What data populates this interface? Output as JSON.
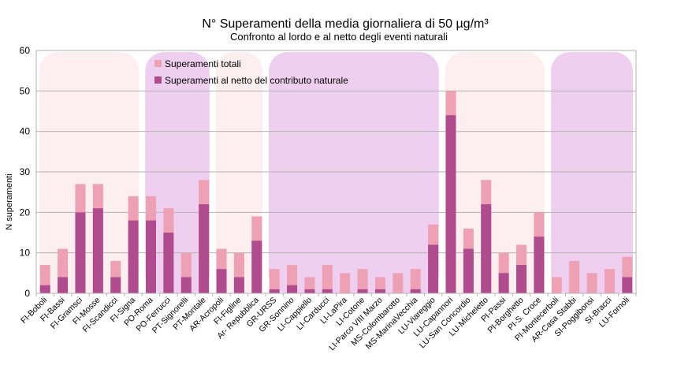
{
  "chart_data": {
    "type": "bar",
    "title": "N° Superamenti della media giornaliera di 50 µg/m³",
    "subtitle": "Confronto al lordo e al netto degli eventi naturali",
    "xlabel": "",
    "ylabel": "N superamenti",
    "ylim": [
      0,
      60
    ],
    "yticks": [
      0,
      10,
      20,
      30,
      40,
      50,
      60
    ],
    "grid": true,
    "legend_position": "top-left",
    "categories": [
      "FI-Boboli",
      "FI-Bassi",
      "FI-Gramsci",
      "FI-Mosse",
      "FI-Scandicci",
      "FI-Signa",
      "PO-Roma",
      "PO-Ferrucci",
      "PT-Signorelli",
      "PT-Montale",
      "AR-Acropoli",
      "FI-Figline",
      "Ar- Repubblica",
      "GR-URSS",
      "GR-Sonnino",
      "LI-Cappiello",
      "LI-Carducci",
      "LI-LaPira",
      "LI-Cotone",
      "LI-Parco VIII Marzo",
      "MS-Colombarotto",
      "MS-MarinaVecchia",
      "LU-Viareggio",
      "LU-Capannori",
      "LU-San Concordio",
      "LU-Micheletto",
      "PI-Passi",
      "PI-Borghetto",
      "PI-S. Croce",
      "PI-Montecerboli",
      "AR-Casa Stabbi",
      "SI-Poggibonsi",
      "SI-Bracci",
      "LU-Fornoli"
    ],
    "series": [
      {
        "name": "Superamenti  totali",
        "color": "#eea0b4",
        "values": [
          7,
          11,
          27,
          27,
          8,
          24,
          24,
          21,
          10,
          28,
          11,
          10,
          19,
          6,
          7,
          4,
          7,
          5,
          6,
          4,
          5,
          6,
          17,
          50,
          16,
          28,
          10,
          12,
          20,
          4,
          8,
          5,
          6,
          9
        ]
      },
      {
        "name": "Superamenti al netto del contributo naturale",
        "color": "#b04c8e",
        "values": [
          2,
          4,
          20,
          21,
          4,
          18,
          18,
          15,
          4,
          22,
          6,
          4,
          13,
          1,
          2,
          1,
          1,
          0,
          1,
          1,
          0,
          1,
          12,
          44,
          11,
          22,
          5,
          7,
          14,
          0,
          0,
          0,
          0,
          4
        ]
      }
    ],
    "background_groups": [
      {
        "from": 0,
        "to": 5,
        "color": "#fdeef0"
      },
      {
        "from": 6,
        "to": 9,
        "color": "#efcff0"
      },
      {
        "from": 10,
        "to": 12,
        "color": "#fdeef0"
      },
      {
        "from": 13,
        "to": 22,
        "color": "#efcff0"
      },
      {
        "from": 23,
        "to": 28,
        "color": "#fdeef0"
      },
      {
        "from": 29,
        "to": 33,
        "color": "#efcff0"
      }
    ]
  }
}
